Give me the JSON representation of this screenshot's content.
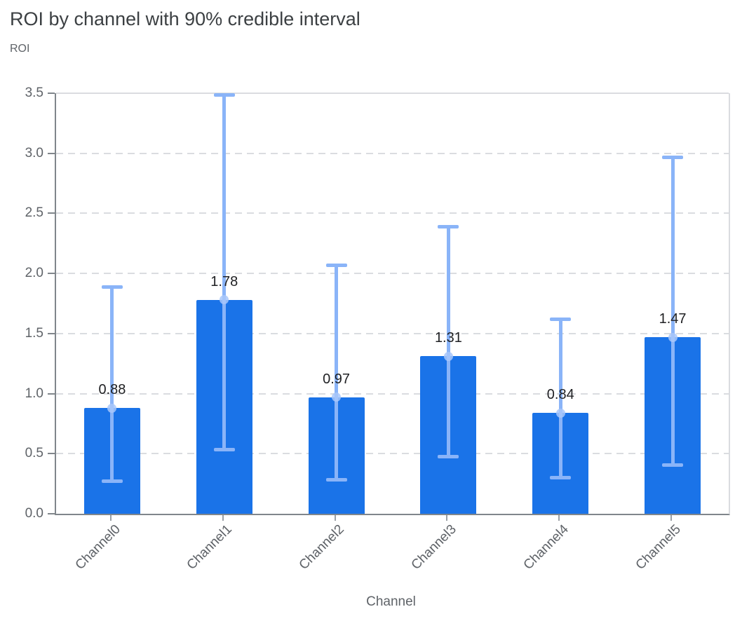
{
  "chart_data": {
    "type": "bar",
    "title": "ROI by channel with 90% credible interval",
    "ylabel": "ROI",
    "xlabel": "Channel",
    "legend": "none",
    "grid": "horizontal-dashed",
    "ci_level": "90%",
    "categories": [
      "Channel0",
      "Channel1",
      "Channel2",
      "Channel3",
      "Channel4",
      "Channel5"
    ],
    "values": [
      0.88,
      1.78,
      0.97,
      1.31,
      0.84,
      1.47
    ],
    "value_labels": [
      "0.88",
      "1.78",
      "0.97",
      "1.31",
      "0.84",
      "1.47"
    ],
    "ci_low": [
      0.27,
      0.53,
      0.28,
      0.47,
      0.3,
      0.4
    ],
    "ci_high": [
      1.89,
      3.49,
      2.07,
      2.39,
      1.62,
      2.97
    ],
    "ylim": [
      0,
      3.5
    ],
    "ytick_values": [
      0,
      0.5,
      1.0,
      1.5,
      2.0,
      2.5,
      3.0,
      3.5
    ],
    "ytick_labels": [
      "0.0",
      "0.5",
      "1.0",
      "1.5",
      "2.0",
      "2.5",
      "3.0",
      "3.5"
    ],
    "colors": {
      "bar": "#1a73e8",
      "error_bar": "#8ab4f8",
      "mean_marker": "#a8c7fa",
      "grid": "#dadce0",
      "axis": "#80868b",
      "tick_text": "#5f6368",
      "title_text": "#3c4043",
      "value_text": "#202124"
    }
  }
}
